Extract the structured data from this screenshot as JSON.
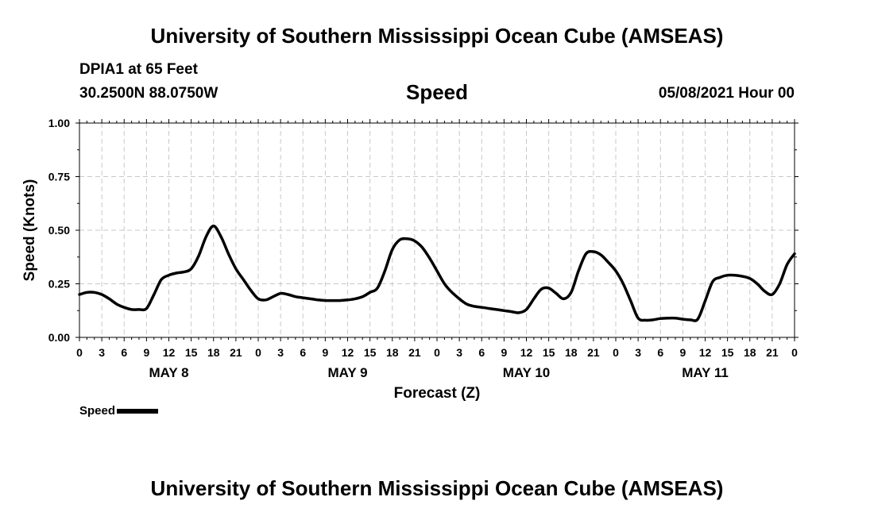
{
  "header": {
    "title": "University of Southern Mississippi Ocean Cube (AMSEAS)",
    "station": "DPIA1 at 65 Feet",
    "coords": "30.2500N  88.0750W",
    "variable": "Speed",
    "datetime": "05/08/2021 Hour 00"
  },
  "footer": {
    "title": "University of Southern Mississippi Ocean Cube (AMSEAS)"
  },
  "legend": {
    "label": "Speed"
  },
  "chart_data": {
    "type": "line",
    "title": "Speed",
    "xlabel": "Forecast (Z)",
    "ylabel": "Speed (Knots)",
    "ylim": [
      0,
      1.0
    ],
    "xlim": [
      0,
      96
    ],
    "yticks": [
      "0.00",
      "0.25",
      "0.50",
      "0.75",
      "1.00"
    ],
    "xtick_labels": [
      "0",
      "3",
      "6",
      "9",
      "12",
      "15",
      "18",
      "21",
      "0",
      "3",
      "6",
      "9",
      "12",
      "15",
      "18",
      "21",
      "0",
      "3",
      "6",
      "9",
      "12",
      "15",
      "18",
      "21",
      "0",
      "3",
      "6",
      "9",
      "12",
      "15",
      "18",
      "21",
      "0"
    ],
    "day_labels": [
      {
        "label": "MAY 8",
        "hour": 12
      },
      {
        "label": "MAY 9",
        "hour": 36
      },
      {
        "label": "MAY 10",
        "hour": 60
      },
      {
        "label": "MAY 11",
        "hour": 84
      }
    ],
    "grid": true,
    "series": [
      {
        "name": "Speed",
        "color": "#000000",
        "x": [
          0,
          1,
          2,
          3,
          4,
          5,
          6,
          7,
          8,
          9,
          10,
          11,
          12,
          13,
          14,
          15,
          16,
          17,
          18,
          19,
          20,
          21,
          22,
          23,
          24,
          25,
          26,
          27,
          28,
          29,
          30,
          31,
          32,
          33,
          34,
          35,
          36,
          37,
          38,
          39,
          40,
          41,
          42,
          43,
          44,
          45,
          46,
          47,
          48,
          49,
          50,
          51,
          52,
          53,
          54,
          55,
          56,
          57,
          58,
          59,
          60,
          61,
          62,
          63,
          64,
          65,
          66,
          67,
          68,
          69,
          70,
          71,
          72,
          73,
          74,
          75,
          76,
          77,
          78,
          79,
          80,
          81,
          82,
          83,
          84,
          85,
          86,
          87,
          88,
          89,
          90,
          91,
          92,
          93,
          94,
          95,
          96
        ],
        "values": [
          0.2,
          0.21,
          0.21,
          0.2,
          0.18,
          0.155,
          0.14,
          0.13,
          0.13,
          0.135,
          0.2,
          0.27,
          0.29,
          0.3,
          0.305,
          0.32,
          0.38,
          0.47,
          0.52,
          0.47,
          0.39,
          0.32,
          0.27,
          0.22,
          0.18,
          0.175,
          0.19,
          0.205,
          0.2,
          0.19,
          0.185,
          0.18,
          0.175,
          0.172,
          0.172,
          0.172,
          0.175,
          0.18,
          0.19,
          0.21,
          0.23,
          0.31,
          0.41,
          0.455,
          0.46,
          0.45,
          0.42,
          0.37,
          0.31,
          0.25,
          0.21,
          0.18,
          0.155,
          0.145,
          0.14,
          0.135,
          0.13,
          0.125,
          0.12,
          0.115,
          0.13,
          0.18,
          0.225,
          0.23,
          0.205,
          0.18,
          0.21,
          0.31,
          0.39,
          0.4,
          0.385,
          0.35,
          0.31,
          0.25,
          0.17,
          0.09,
          0.08,
          0.082,
          0.088,
          0.09,
          0.09,
          0.085,
          0.082,
          0.085,
          0.17,
          0.26,
          0.28,
          0.29,
          0.29,
          0.285,
          0.275,
          0.25,
          0.215,
          0.2,
          0.25,
          0.34,
          0.39
        ]
      }
    ]
  }
}
